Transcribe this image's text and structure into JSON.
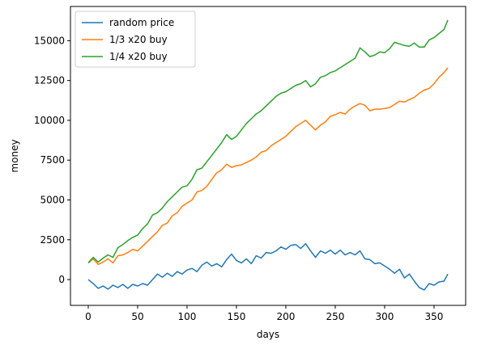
{
  "chart_data": {
    "type": "line",
    "title": "",
    "xlabel": "days",
    "ylabel": "money",
    "xlim": [
      -18,
      382
    ],
    "ylim": [
      -1620,
      17150
    ],
    "x_ticks": [
      0,
      50,
      100,
      150,
      200,
      250,
      300,
      350
    ],
    "y_ticks": [
      0,
      2500,
      5000,
      7500,
      10000,
      12500,
      15000
    ],
    "grid": false,
    "legend_position": "top-left",
    "series": [
      {
        "name": "random price",
        "color": "#1f77b4",
        "x": [
          0,
          5,
          10,
          15,
          20,
          25,
          30,
          35,
          40,
          45,
          50,
          55,
          60,
          65,
          70,
          75,
          80,
          85,
          90,
          95,
          100,
          105,
          110,
          115,
          120,
          125,
          130,
          135,
          140,
          145,
          150,
          155,
          160,
          165,
          170,
          175,
          180,
          185,
          190,
          195,
          200,
          205,
          210,
          215,
          220,
          225,
          230,
          235,
          240,
          245,
          250,
          255,
          260,
          265,
          270,
          275,
          280,
          285,
          290,
          295,
          300,
          305,
          310,
          315,
          320,
          325,
          330,
          335,
          340,
          345,
          350,
          355,
          360,
          364
        ],
        "values": [
          0,
          -250,
          -550,
          -400,
          -600,
          -350,
          -500,
          -300,
          -550,
          -300,
          -400,
          -250,
          -350,
          0,
          350,
          150,
          400,
          200,
          500,
          350,
          600,
          700,
          500,
          900,
          1100,
          850,
          1000,
          800,
          1250,
          1600,
          1200,
          1050,
          1300,
          1000,
          1500,
          1350,
          1700,
          1650,
          1800,
          2050,
          1900,
          2150,
          2200,
          1950,
          2250,
          1800,
          1400,
          1800,
          1650,
          1850,
          1600,
          1850,
          1550,
          1700,
          1550,
          1800,
          1300,
          1250,
          1000,
          1050,
          850,
          650,
          400,
          650,
          100,
          350,
          -100,
          -500,
          -650,
          -250,
          -350,
          -150,
          -100,
          350
        ]
      },
      {
        "name": "1/3 x20 buy",
        "color": "#ff7f0e",
        "x": [
          0,
          5,
          10,
          15,
          20,
          25,
          30,
          35,
          40,
          45,
          50,
          55,
          60,
          65,
          70,
          75,
          80,
          85,
          90,
          95,
          100,
          105,
          110,
          115,
          120,
          125,
          130,
          135,
          140,
          145,
          150,
          155,
          160,
          165,
          170,
          175,
          180,
          185,
          190,
          195,
          200,
          205,
          210,
          215,
          220,
          225,
          230,
          235,
          240,
          245,
          250,
          255,
          260,
          265,
          270,
          275,
          280,
          285,
          290,
          295,
          300,
          305,
          310,
          315,
          320,
          325,
          330,
          335,
          340,
          345,
          350,
          355,
          360,
          364
        ],
        "values": [
          1050,
          1300,
          950,
          1100,
          1300,
          1050,
          1500,
          1550,
          1700,
          1900,
          1800,
          2100,
          2400,
          2700,
          3000,
          3400,
          3550,
          4000,
          4200,
          4600,
          4800,
          5000,
          5500,
          5600,
          5850,
          6300,
          6700,
          6900,
          7250,
          7050,
          7150,
          7200,
          7350,
          7500,
          7700,
          8000,
          8100,
          8400,
          8600,
          8800,
          9000,
          9300,
          9600,
          9800,
          10000,
          9700,
          9400,
          9700,
          9900,
          10250,
          10350,
          10500,
          10400,
          10700,
          10900,
          11050,
          10950,
          10600,
          10700,
          10700,
          10750,
          10800,
          11000,
          11200,
          11150,
          11300,
          11450,
          11700,
          11900,
          12000,
          12300,
          12700,
          13000,
          13300
        ]
      },
      {
        "name": "1/4 x20 buy",
        "color": "#2ca02c",
        "x": [
          0,
          5,
          10,
          15,
          20,
          25,
          30,
          35,
          40,
          45,
          50,
          55,
          60,
          65,
          70,
          75,
          80,
          85,
          90,
          95,
          100,
          105,
          110,
          115,
          120,
          125,
          130,
          135,
          140,
          145,
          150,
          155,
          160,
          165,
          170,
          175,
          180,
          185,
          190,
          195,
          200,
          205,
          210,
          215,
          220,
          225,
          230,
          235,
          240,
          245,
          250,
          255,
          260,
          265,
          270,
          275,
          280,
          285,
          290,
          295,
          300,
          305,
          310,
          315,
          320,
          325,
          330,
          335,
          340,
          345,
          350,
          355,
          360,
          364
        ],
        "values": [
          1050,
          1400,
          1100,
          1350,
          1550,
          1400,
          2000,
          2200,
          2450,
          2650,
          2800,
          3200,
          3500,
          4050,
          4200,
          4500,
          4900,
          5200,
          5500,
          5800,
          5900,
          6300,
          6900,
          7000,
          7400,
          7800,
          8200,
          8600,
          9100,
          8800,
          9000,
          9400,
          9800,
          10100,
          10400,
          10600,
          10900,
          11200,
          11500,
          11700,
          11800,
          12000,
          12200,
          12300,
          12500,
          12100,
          12300,
          12700,
          12800,
          13000,
          13100,
          13300,
          13500,
          13700,
          13900,
          14550,
          14300,
          14000,
          14100,
          14300,
          14250,
          14500,
          14900,
          14800,
          14700,
          14650,
          14850,
          14600,
          14600,
          15050,
          15200,
          15450,
          15700,
          16300
        ]
      }
    ]
  }
}
